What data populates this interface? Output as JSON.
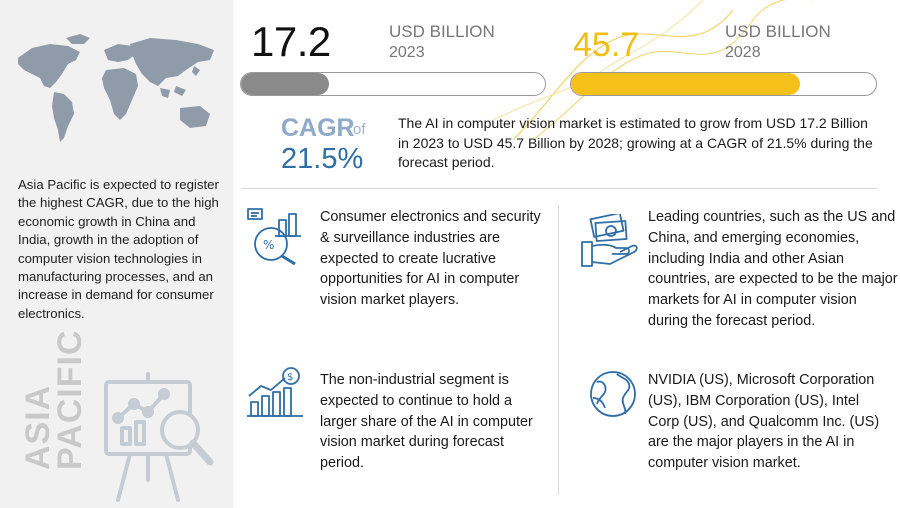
{
  "colors": {
    "accent_yellow": "#f5c01a",
    "accent_blue": "#2f6ea6",
    "bar_grey": "#8a8a8a",
    "sidebar_bg": "#f1f1f1"
  },
  "sidebar": {
    "map_icon": "world-map",
    "region_description": "Asia Pacific is expected to register the highest CAGR, due to the high economic growth in China and India, growth in the adoption of computer vision technologies in manufacturing processes, and an increase in demand for consumer electronics.",
    "region_title_line1": "ASIA",
    "region_title_line2": "PACIFIC",
    "illustration_icon": "analytics-board-magnifier"
  },
  "market": {
    "start": {
      "value": "17.2",
      "unit": "USD BILLION",
      "year": "2023",
      "bar_fill_fraction": 0.29
    },
    "end": {
      "value": "45.7",
      "unit": "USD BILLION",
      "year": "2028",
      "bar_fill_fraction": 0.75
    }
  },
  "cagr": {
    "label": "CAGR",
    "of": "of",
    "value": "21.5%",
    "summary": "The AI in computer vision market is estimated to grow from USD 17.2 Billion in 2023 to USD 45.7 Billion by 2028; growing at a CAGR of 21.5% during the forecast period."
  },
  "cards": {
    "consumer": {
      "icon": "consumer-electronics-analytics",
      "text": "Consumer electronics and security & surveillance industries are expected to create lucrative opportunities for AI in computer vision market players."
    },
    "countries": {
      "icon": "money-hand",
      "text": "Leading countries, such as the US and China, and emerging economies, including India and other Asian countries, are expected to be the major markets for AI in computer vision during the forecast period."
    },
    "segment": {
      "icon": "bar-chart-growth-dollar",
      "text": "The non-industrial segment is expected to continue to hold a larger share of the AI in computer vision market during forecast period."
    },
    "players": {
      "icon": "globe",
      "text": "NVIDIA (US), Microsoft Corporation (US), IBM Corporation (US), Intel Corp (US), and Qualcomm Inc. (US) are the major players in the AI in computer vision market."
    }
  }
}
